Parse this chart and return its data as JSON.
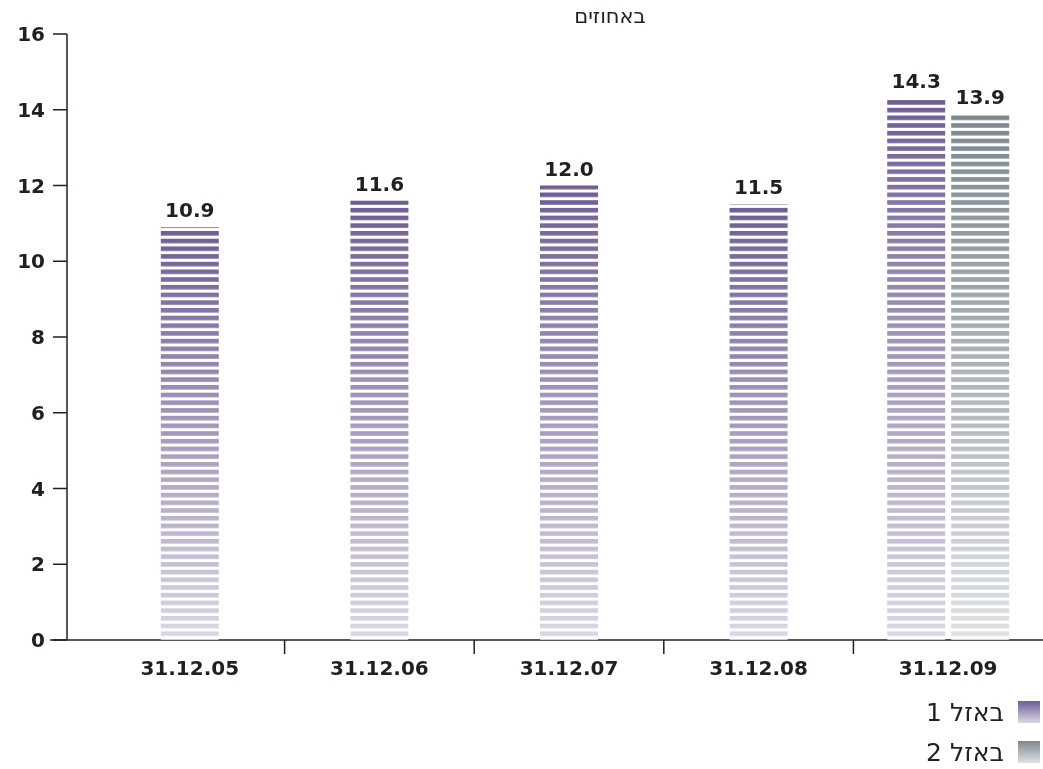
{
  "chart_data": {
    "type": "bar",
    "title": "באחוזים",
    "categories": [
      "31.12.05",
      "31.12.06",
      "31.12.07",
      "31.12.08",
      "31.12.09"
    ],
    "series": [
      {
        "name": "באזל 1",
        "color": "#6e5d94",
        "values": [
          10.9,
          11.6,
          12.0,
          11.5,
          14.3
        ],
        "value_labels": [
          "10.9",
          "11.6",
          "12.0",
          "11.5",
          "14.3"
        ]
      },
      {
        "name": "באזל 2",
        "color": "#7d878f",
        "values": [
          null,
          null,
          null,
          null,
          13.9
        ],
        "value_labels": [
          null,
          null,
          null,
          null,
          "13.9"
        ]
      }
    ],
    "ylim": [
      0,
      16
    ],
    "yticks": [
      0,
      2,
      4,
      6,
      8,
      10,
      12,
      14,
      16
    ],
    "legend": "bottom right"
  }
}
